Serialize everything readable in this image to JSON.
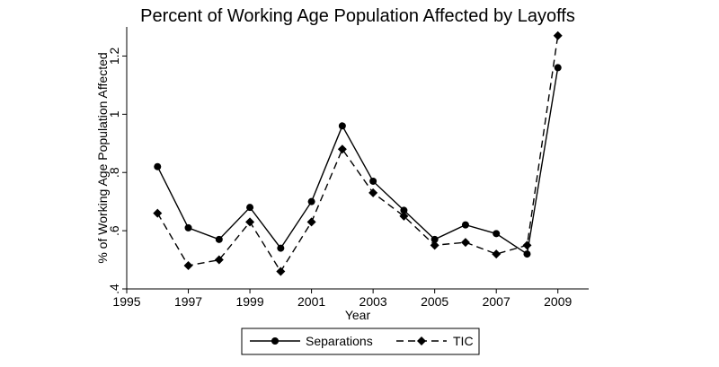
{
  "chart_data": {
    "type": "line",
    "title": "Percent of Working Age Population Affected by Layoffs",
    "xlabel": "Year",
    "ylabel": "% of Working Age Population Affected",
    "x": [
      1996,
      1997,
      1998,
      1999,
      2000,
      2001,
      2002,
      2003,
      2004,
      2005,
      2006,
      2007,
      2008,
      2009
    ],
    "xlim": [
      1995,
      2010
    ],
    "ylim": [
      0.4,
      1.3
    ],
    "xticks": [
      "1995",
      "1997",
      "1999",
      "2001",
      "2003",
      "2005",
      "2007",
      "2009"
    ],
    "yticks": [
      ".4",
      ".6",
      ".8",
      "1",
      "1.2"
    ],
    "grid": false,
    "legend_position": "bottom",
    "series": [
      {
        "name": "Separations",
        "style": "solid",
        "marker": "circle",
        "values": [
          0.82,
          0.61,
          0.57,
          0.68,
          0.54,
          0.7,
          0.96,
          0.77,
          0.67,
          0.57,
          0.62,
          0.59,
          0.52,
          1.16
        ]
      },
      {
        "name": "TIC",
        "style": "dashed",
        "marker": "diamond",
        "values": [
          0.66,
          0.48,
          0.5,
          0.63,
          0.46,
          0.63,
          0.88,
          0.73,
          0.65,
          0.55,
          0.56,
          0.52,
          0.55,
          1.27
        ]
      }
    ]
  }
}
